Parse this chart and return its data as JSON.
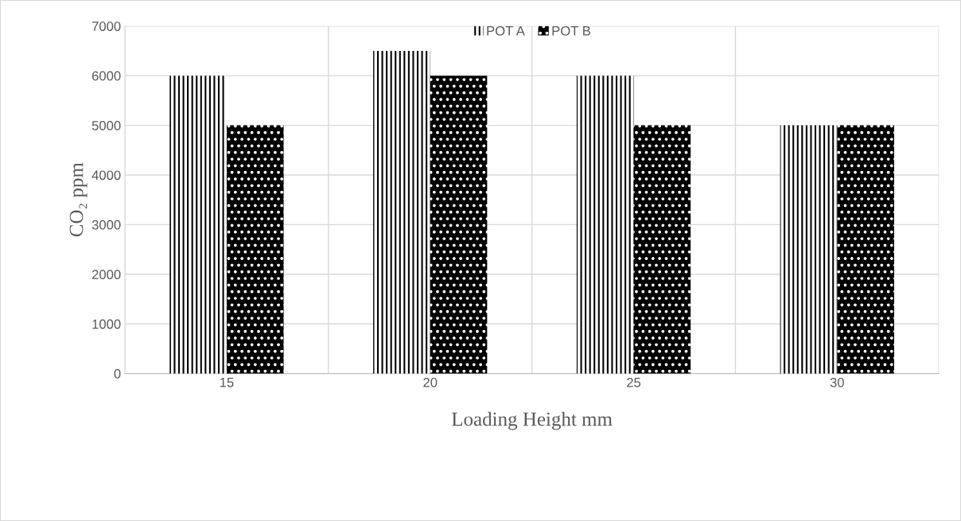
{
  "chart_data": {
    "type": "bar",
    "categories": [
      "15",
      "20",
      "25",
      "30"
    ],
    "series": [
      {
        "name": "POT A",
        "color": "#ffffff",
        "values": [
          6000,
          6500,
          6000,
          5000
        ]
      },
      {
        "name": "POT B",
        "color": "#000000",
        "values": [
          5000,
          6000,
          5000,
          5000
        ]
      }
    ],
    "xlabel": "Loading Height mm",
    "ylabel": "CO₂ ppm",
    "ylim": [
      0,
      7000
    ],
    "yticks": [
      0,
      1000,
      2000,
      3000,
      4000,
      5000,
      6000,
      7000
    ],
    "grid": true,
    "legend": "top"
  }
}
